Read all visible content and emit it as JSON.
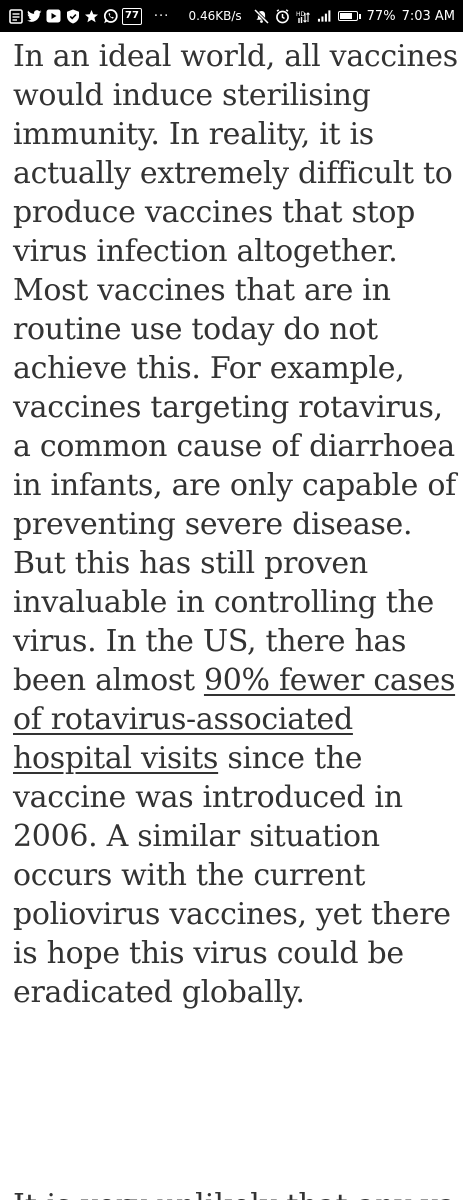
{
  "status_bar": {
    "network_speed": "0.46KB/s",
    "notification_badge": "77",
    "more_indicator": "···",
    "battery_percent": "77%",
    "battery_level": 0.77,
    "time": "7:03 AM",
    "icons": [
      "document-icon",
      "twitter-icon",
      "video-icon",
      "shield-icon",
      "game-icon",
      "whatsapp-icon",
      "notification-badge",
      "mute-icon",
      "alarm-icon",
      "hotspot-icon",
      "signal-icon",
      "battery-icon"
    ]
  },
  "article": {
    "text_before_link": "In an ideal world, all vaccines would induce sterilising immunity. In reality, it is actually extremely difficult to produce vaccines that stop virus infection altogether. Most vaccines that are in routine use today do not achieve this. For example, vaccines targeting rotavirus, a common cause of diarrhoea in infants, are only capable of preventing severe disease. But this has still proven invaluable in controlling the virus. In the US, there has been almost ",
    "link_text": "90% fewer cases of rotavirus-associated hospital visits",
    "text_after_link": " since the vaccine was introduced in 2006. A similar situation occurs with the current poliovirus vaccines, yet there is hope this virus could be eradicated globally.",
    "cutoff_text": "It is very unlikely that any vaccines"
  }
}
